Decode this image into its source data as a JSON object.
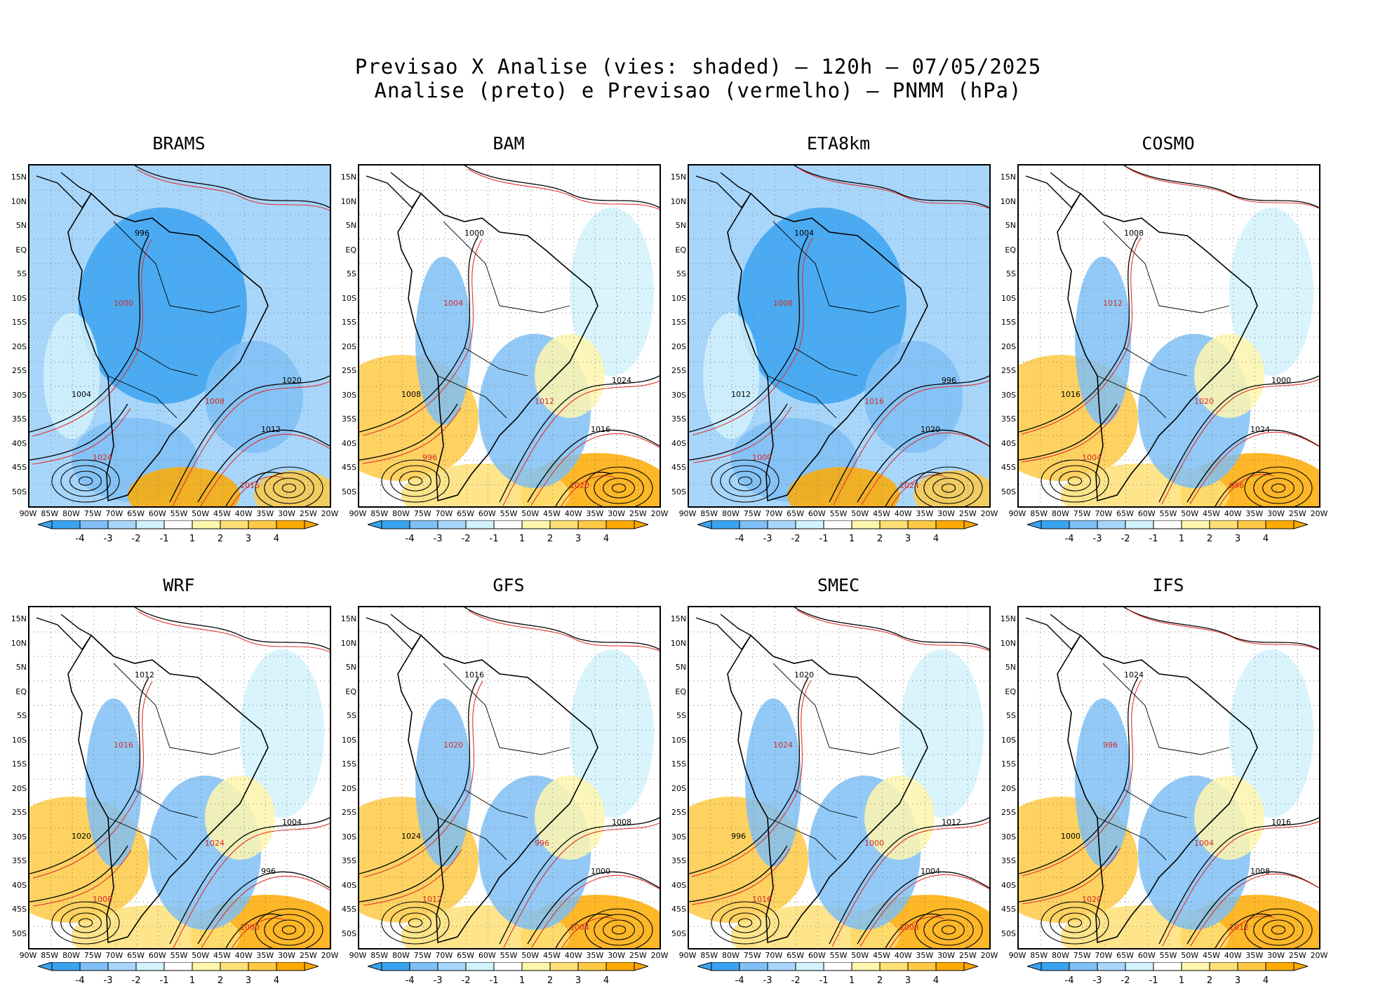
{
  "header": {
    "line1": "Previsao X Analise (vies: shaded) – 120h – 07/05/2025",
    "line2": "Analise (preto) e Previsao (vermelho) – PNMM (hPa)"
  },
  "axes": {
    "lat_labels": [
      "15N",
      "10N",
      "5N",
      "EQ",
      "5S",
      "10S",
      "15S",
      "20S",
      "25S",
      "30S",
      "35S",
      "40S",
      "45S",
      "50S"
    ],
    "lon_labels": [
      "90W",
      "85W",
      "80W",
      "75W",
      "70W",
      "65W",
      "60W",
      "55W",
      "50W",
      "45W",
      "40W",
      "35W",
      "30W",
      "25W",
      "20W"
    ]
  },
  "colorbar": {
    "labels": [
      "-4",
      "-3",
      "-2",
      "-1",
      "1",
      "2",
      "3",
      "4"
    ],
    "colors": [
      "#3aa3f0",
      "#7fbff5",
      "#a8d6fb",
      "#d2f2fc",
      "#ffffff",
      "#fff6ae",
      "#fee077",
      "#feca45",
      "#feaa00"
    ]
  },
  "panels": [
    {
      "model": "BRAMS",
      "bias": "negative"
    },
    {
      "model": "BAM",
      "bias": "mixed"
    },
    {
      "model": "ETA8km",
      "bias": "negative"
    },
    {
      "model": "COSMO",
      "bias": "mixed"
    },
    {
      "model": "WRF",
      "bias": "mixed"
    },
    {
      "model": "GFS",
      "bias": "mixed"
    },
    {
      "model": "SMEC",
      "bias": "mixed"
    },
    {
      "model": "IFS",
      "bias": "mixed"
    }
  ],
  "isobars": {
    "analysis_color": "#000000",
    "forecast_color": "#e0322c",
    "labels": [
      "996",
      "1000",
      "1004",
      "1008",
      "1012",
      "1016",
      "1020",
      "1024"
    ]
  }
}
